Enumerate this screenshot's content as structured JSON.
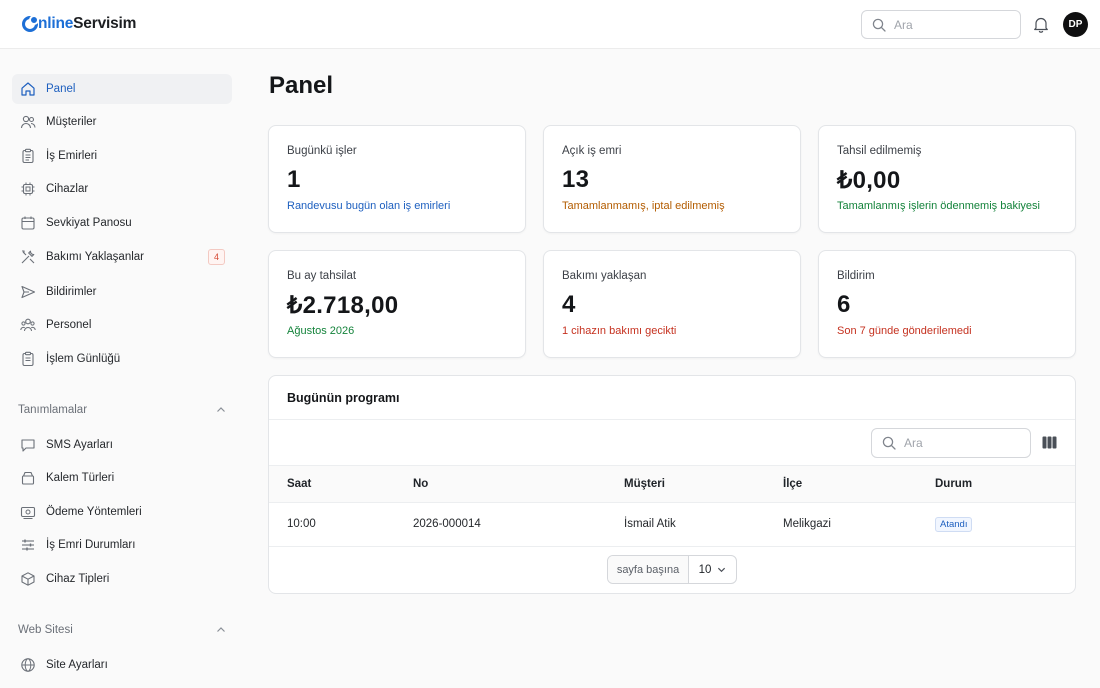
{
  "header": {
    "logo_part1": "nline",
    "logo_part2": "Servisim",
    "search_placeholder": "Ara",
    "avatar_initials": "DP"
  },
  "sidebar": {
    "items": [
      {
        "label": "Panel",
        "icon": "home-icon",
        "active": true
      },
      {
        "label": "Müşteriler",
        "icon": "users-icon"
      },
      {
        "label": "İş Emirleri",
        "icon": "clipboard-icon"
      },
      {
        "label": "Cihazlar",
        "icon": "chip-icon"
      },
      {
        "label": "Sevkiyat Panosu",
        "icon": "calendar-icon"
      },
      {
        "label": "Bakımı Yaklaşanlar",
        "icon": "tools-icon",
        "badge": "4"
      },
      {
        "label": "Bildirimler",
        "icon": "send-icon"
      },
      {
        "label": "Personel",
        "icon": "team-icon"
      },
      {
        "label": "İşlem Günlüğü",
        "icon": "log-icon"
      }
    ],
    "section_definitions": {
      "title": "Tanımlamalar",
      "items": [
        {
          "label": "SMS Ayarları",
          "icon": "message-icon"
        },
        {
          "label": "Kalem Türleri",
          "icon": "box-icon"
        },
        {
          "label": "Ödeme Yöntemleri",
          "icon": "payment-icon"
        },
        {
          "label": "İş Emri Durumları",
          "icon": "sliders-icon"
        },
        {
          "label": "Cihaz Tipleri",
          "icon": "cube-icon"
        }
      ]
    },
    "section_website": {
      "title": "Web Sitesi",
      "items": [
        {
          "label": "Site Ayarları",
          "icon": "globe-icon"
        }
      ]
    }
  },
  "main": {
    "title": "Panel",
    "cards": [
      {
        "label": "Bugünkü işler",
        "value": "1",
        "sub": "Randevusu bugün olan iş emirleri",
        "tone": "blue"
      },
      {
        "label": "Açık iş emri",
        "value": "13",
        "sub": "Tamamlanmamış, iptal edilmemiş",
        "tone": "orange"
      },
      {
        "label": "Tahsil edilmemiş",
        "value": "₺0,00",
        "sub": "Tamamlanmış işlerin ödenmemiş bakiyesi",
        "tone": "green"
      },
      {
        "label": "Bu ay tahsilat",
        "value": "₺2.718,00",
        "sub": "Ağustos 2026",
        "tone": "green"
      },
      {
        "label": "Bakımı yaklaşan",
        "value": "4",
        "sub": "1 cihazın bakımı gecikti",
        "tone": "red"
      },
      {
        "label": "Bildirim",
        "value": "6",
        "sub": "Son 7 günde gönderilemedi",
        "tone": "red"
      }
    ],
    "schedule": {
      "title": "Bugünün programı",
      "search_placeholder": "Ara",
      "columns": [
        "Saat",
        "No",
        "Müşteri",
        "İlçe",
        "Durum"
      ],
      "rows": [
        {
          "time": "10:00",
          "no": "2026-000014",
          "customer": "İsmail Atik",
          "district": "Melikgazi",
          "status": "Atandı"
        }
      ],
      "per_page_label": "sayfa başına",
      "per_page_value": "10"
    }
  }
}
